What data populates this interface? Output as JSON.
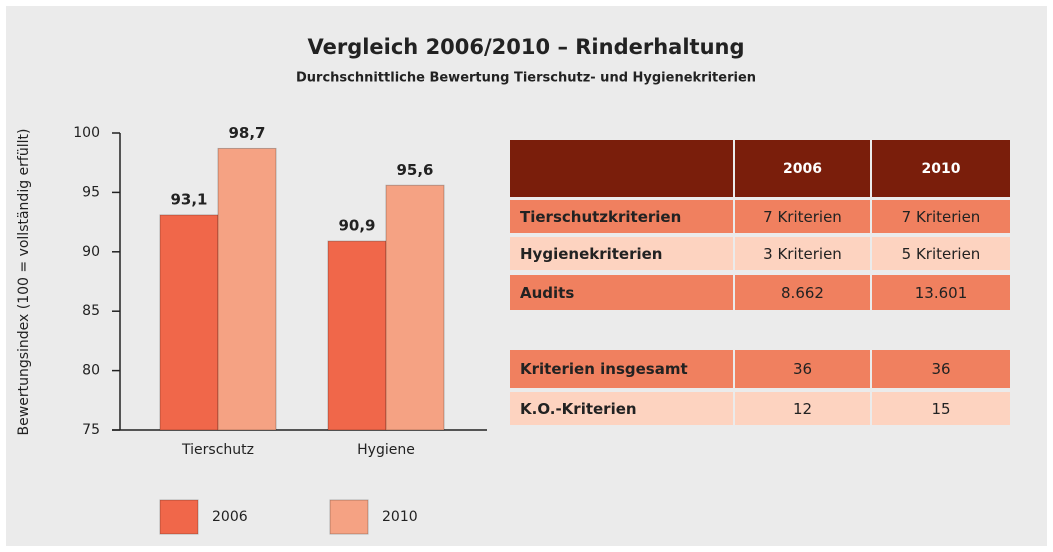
{
  "chart_data": {
    "type": "bar",
    "title": "Vergleich 2006/2010 – Rinderhaltung",
    "subtitle": "Durchschnittliche Bewertung Tierschutz- und Hygienekriterien",
    "y_label": "Bewertungsindex (100 = vollständig erfüllt)",
    "categories": [
      "Tierschutz",
      "Hygiene"
    ],
    "series": [
      {
        "name": "2006",
        "color": "#f0674a",
        "values": [
          93.1,
          90.9
        ],
        "value_labels": [
          "93,1",
          "90,9"
        ]
      },
      {
        "name": "2010",
        "color": "#f5a283",
        "values": [
          98.7,
          95.6
        ],
        "value_labels": [
          "98,7",
          "95,6"
        ]
      }
    ],
    "ylim": [
      75,
      100
    ],
    "yticks": [
      75,
      80,
      85,
      90,
      95,
      100
    ],
    "legend": "bottom"
  },
  "tables": [
    {
      "columns": [
        "2006",
        "2010"
      ],
      "rows": [
        [
          "Tierschutzkriterien",
          "7 Kriterien",
          "7 Kriterien"
        ],
        [
          "Hygienekriterien",
          "3 Kriterien",
          "5 Kriterien"
        ],
        [
          "Audits",
          "8.662",
          "13.601"
        ]
      ]
    },
    {
      "rows": [
        [
          "Kriterien insgesamt",
          "36",
          "36"
        ],
        [
          "K.O.-Kriterien",
          "12",
          "15"
        ]
      ]
    }
  ]
}
